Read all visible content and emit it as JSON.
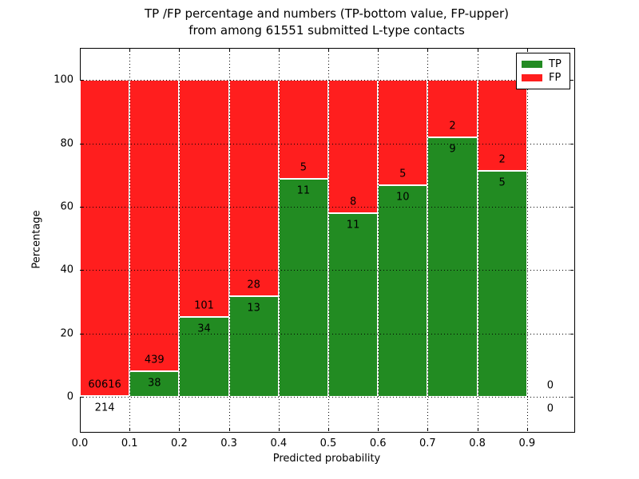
{
  "title_line1": "TP /FP percentage and numbers (TP-bottom value, FP-upper)",
  "title_line2": "from among 61551 submitted L-type contacts",
  "chart_data": {
    "type": "bar",
    "stacked": true,
    "normalized": "each bin scaled to 100%",
    "title": "TP /FP percentage and numbers (TP-bottom value, FP-upper) from among 61551 submitted L-type contacts",
    "xlabel": "Predicted probability",
    "ylabel": "Percentage",
    "bin_edges": [
      0.0,
      0.1,
      0.2,
      0.3,
      0.4,
      0.5,
      0.6,
      0.7,
      0.8,
      0.9,
      1.0
    ],
    "series": [
      {
        "name": "TP",
        "color": "#228b22",
        "values": [
          214,
          38,
          34,
          13,
          11,
          11,
          10,
          9,
          5,
          0
        ]
      },
      {
        "name": "FP",
        "color": "#ff1e1e",
        "values": [
          60616,
          439,
          101,
          28,
          5,
          8,
          5,
          2,
          2,
          0
        ]
      }
    ],
    "tp_percent_by_bin": [
      0.35,
      7.97,
      25.19,
      31.71,
      68.75,
      57.89,
      66.67,
      81.82,
      71.43,
      0
    ],
    "x_tick_labels": [
      "0.0",
      "0.1",
      "0.2",
      "0.3",
      "0.4",
      "0.5",
      "0.6",
      "0.7",
      "0.8",
      "0.9"
    ],
    "x_tick_values": [
      0.0,
      0.1,
      0.2,
      0.3,
      0.4,
      0.5,
      0.6,
      0.7,
      0.8,
      0.9
    ],
    "y_tick_labels": [
      "0",
      "20",
      "40",
      "60",
      "80",
      "100"
    ],
    "y_tick_values": [
      0,
      20,
      40,
      60,
      80,
      100
    ],
    "xlim": [
      0.0,
      0.9936
    ],
    "ylim": [
      -10.8,
      110.1
    ],
    "grid": true,
    "grid_style": "dotted",
    "legend_position": "upper right",
    "legend_entries": [
      "TP",
      "FP"
    ],
    "axis_color": "#000000",
    "background_color": "#ffffff"
  }
}
